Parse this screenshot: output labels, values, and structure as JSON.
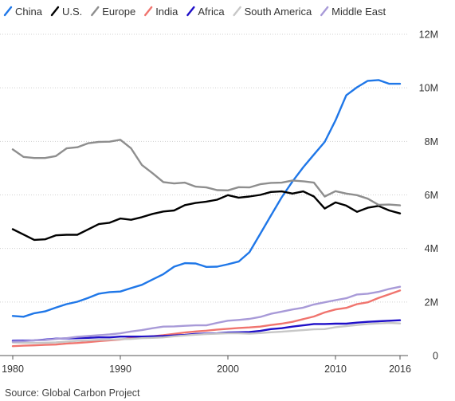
{
  "chart_data": {
    "type": "line",
    "title": "",
    "xlabel": "",
    "ylabel": "",
    "source": "Source: Global Carbon Project",
    "legend_position": "top",
    "grid": true,
    "xlim": [
      1980,
      2016
    ],
    "ylim": [
      0,
      12000000
    ],
    "x_ticks": [
      1980,
      1990,
      2000,
      2010,
      2016
    ],
    "y_ticks": [
      {
        "value": 0,
        "label": "0"
      },
      {
        "value": 2000000,
        "label": "2M"
      },
      {
        "value": 4000000,
        "label": "4M"
      },
      {
        "value": 6000000,
        "label": "6M"
      },
      {
        "value": 8000000,
        "label": "8M"
      },
      {
        "value": 10000000,
        "label": "10M"
      },
      {
        "value": 12000000,
        "label": "12M"
      }
    ],
    "x": [
      1980,
      1981,
      1982,
      1983,
      1984,
      1985,
      1986,
      1987,
      1988,
      1989,
      1990,
      1991,
      1992,
      1993,
      1994,
      1995,
      1996,
      1997,
      1998,
      1999,
      2000,
      2001,
      2002,
      2003,
      2004,
      2005,
      2006,
      2007,
      2008,
      2009,
      2010,
      2011,
      2012,
      2013,
      2014,
      2015,
      2016
    ],
    "series": [
      {
        "name": "China",
        "color": "#1f77e8",
        "values": [
          1480000,
          1450000,
          1580000,
          1650000,
          1790000,
          1920000,
          2010000,
          2150000,
          2310000,
          2370000,
          2390000,
          2520000,
          2640000,
          2840000,
          3040000,
          3320000,
          3450000,
          3440000,
          3310000,
          3320000,
          3410000,
          3510000,
          3860000,
          4540000,
          5230000,
          5910000,
          6500000,
          7030000,
          7510000,
          7980000,
          8780000,
          9720000,
          10020000,
          10260000,
          10290000,
          10150000,
          10150000
        ]
      },
      {
        "name": "U.S.",
        "color": "#000000",
        "values": [
          4720000,
          4520000,
          4320000,
          4340000,
          4490000,
          4510000,
          4510000,
          4710000,
          4910000,
          4960000,
          5120000,
          5070000,
          5170000,
          5290000,
          5380000,
          5420000,
          5620000,
          5700000,
          5750000,
          5820000,
          5990000,
          5900000,
          5940000,
          6000000,
          6110000,
          6130000,
          6050000,
          6130000,
          5940000,
          5490000,
          5720000,
          5600000,
          5370000,
          5520000,
          5590000,
          5420000,
          5310000
        ]
      },
      {
        "name": "Europe",
        "color": "#8e8e8e",
        "values": [
          7700000,
          7420000,
          7380000,
          7380000,
          7450000,
          7740000,
          7780000,
          7930000,
          7980000,
          7990000,
          8060000,
          7740000,
          7120000,
          6810000,
          6480000,
          6430000,
          6460000,
          6310000,
          6280000,
          6180000,
          6170000,
          6290000,
          6280000,
          6400000,
          6450000,
          6460000,
          6540000,
          6510000,
          6460000,
          5940000,
          6140000,
          6050000,
          5990000,
          5860000,
          5630000,
          5640000,
          5610000
        ]
      },
      {
        "name": "India",
        "color": "#f0746e",
        "values": [
          350000,
          370000,
          380000,
          400000,
          410000,
          450000,
          470000,
          500000,
          540000,
          570000,
          600000,
          650000,
          690000,
          720000,
          760000,
          810000,
          860000,
          900000,
          930000,
          970000,
          1000000,
          1030000,
          1050000,
          1080000,
          1140000,
          1190000,
          1260000,
          1360000,
          1460000,
          1610000,
          1720000,
          1780000,
          1920000,
          1990000,
          2150000,
          2290000,
          2430000
        ]
      },
      {
        "name": "Africa",
        "color": "#1f0fc8",
        "values": [
          550000,
          560000,
          570000,
          600000,
          630000,
          640000,
          650000,
          660000,
          680000,
          680000,
          710000,
          710000,
          710000,
          720000,
          730000,
          750000,
          770000,
          810000,
          820000,
          830000,
          860000,
          870000,
          880000,
          920000,
          990000,
          1020000,
          1080000,
          1130000,
          1180000,
          1180000,
          1190000,
          1190000,
          1230000,
          1260000,
          1280000,
          1300000,
          1320000
        ]
      },
      {
        "name": "South America",
        "color": "#c7c7c7",
        "values": [
          490000,
          480000,
          470000,
          480000,
          490000,
          520000,
          550000,
          570000,
          590000,
          600000,
          610000,
          620000,
          650000,
          660000,
          680000,
          720000,
          750000,
          780000,
          800000,
          820000,
          830000,
          830000,
          820000,
          840000,
          870000,
          890000,
          920000,
          950000,
          980000,
          990000,
          1060000,
          1100000,
          1140000,
          1180000,
          1200000,
          1220000,
          1200000
        ]
      },
      {
        "name": "Middle East",
        "color": "#a89ad8",
        "values": [
          520000,
          540000,
          570000,
          580000,
          620000,
          650000,
          700000,
          730000,
          760000,
          790000,
          830000,
          900000,
          950000,
          1020000,
          1080000,
          1090000,
          1110000,
          1130000,
          1130000,
          1220000,
          1300000,
          1330000,
          1370000,
          1440000,
          1560000,
          1640000,
          1720000,
          1790000,
          1910000,
          1990000,
          2070000,
          2140000,
          2280000,
          2310000,
          2380000,
          2490000,
          2570000
        ]
      }
    ]
  }
}
